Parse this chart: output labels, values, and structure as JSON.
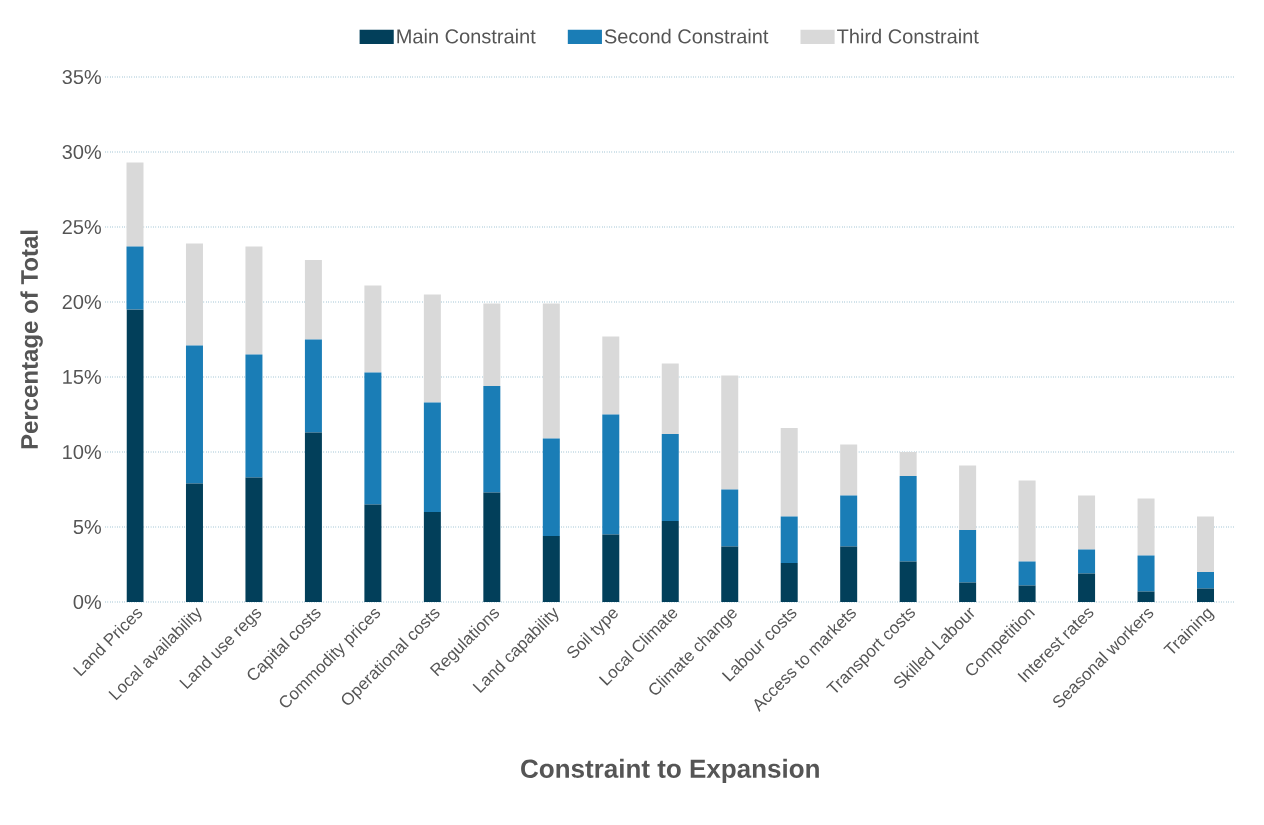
{
  "chart_data": {
    "type": "bar",
    "stacked": true,
    "xlabel": "Constraint to Expansion",
    "ylabel": "Percentage of Total",
    "categories": [
      "Land Prices",
      "Local availability",
      "Land use regs",
      "Capital costs",
      "Commodity prices",
      "Operational costs",
      "Regulations",
      "Land capability",
      "Soil type",
      "Local Climate",
      "Climate change",
      "Labour costs",
      "Access to markets",
      "Transport costs",
      "Skilled Labour",
      "Competition",
      "Interest rates",
      "Seasonal workers",
      "Training"
    ],
    "series": [
      {
        "name": "Main Constraint",
        "color": "#023f5a",
        "values": [
          19.5,
          7.9,
          8.3,
          11.3,
          6.5,
          6.0,
          7.3,
          4.4,
          4.5,
          5.4,
          3.7,
          2.6,
          3.7,
          2.7,
          1.3,
          1.1,
          1.9,
          0.7,
          0.9
        ]
      },
      {
        "name": "Second Constraint",
        "color": "#1a7db6",
        "values": [
          4.2,
          9.2,
          8.2,
          6.2,
          8.8,
          7.3,
          7.1,
          6.5,
          8.0,
          5.8,
          3.8,
          3.1,
          3.4,
          5.7,
          3.5,
          1.6,
          1.6,
          2.4,
          1.1
        ]
      },
      {
        "name": "Third Constraint",
        "color": "#d9d9d9",
        "values": [
          5.6,
          6.8,
          7.2,
          5.3,
          5.8,
          7.2,
          5.5,
          9.0,
          5.2,
          4.7,
          7.6,
          5.9,
          3.4,
          1.6,
          4.3,
          5.4,
          3.6,
          3.8,
          3.7
        ]
      }
    ],
    "ylim": [
      0,
      35
    ],
    "yticks": [
      {
        "value": 0,
        "label": "0%"
      },
      {
        "value": 5,
        "label": "5%"
      },
      {
        "value": 10,
        "label": "10%"
      },
      {
        "value": 15,
        "label": "15%"
      },
      {
        "value": 20,
        "label": "20%"
      },
      {
        "value": 25,
        "label": "25%"
      },
      {
        "value": 30,
        "label": "30%"
      },
      {
        "value": 35,
        "label": "35%"
      }
    ],
    "grid": "y",
    "legend": "top"
  }
}
